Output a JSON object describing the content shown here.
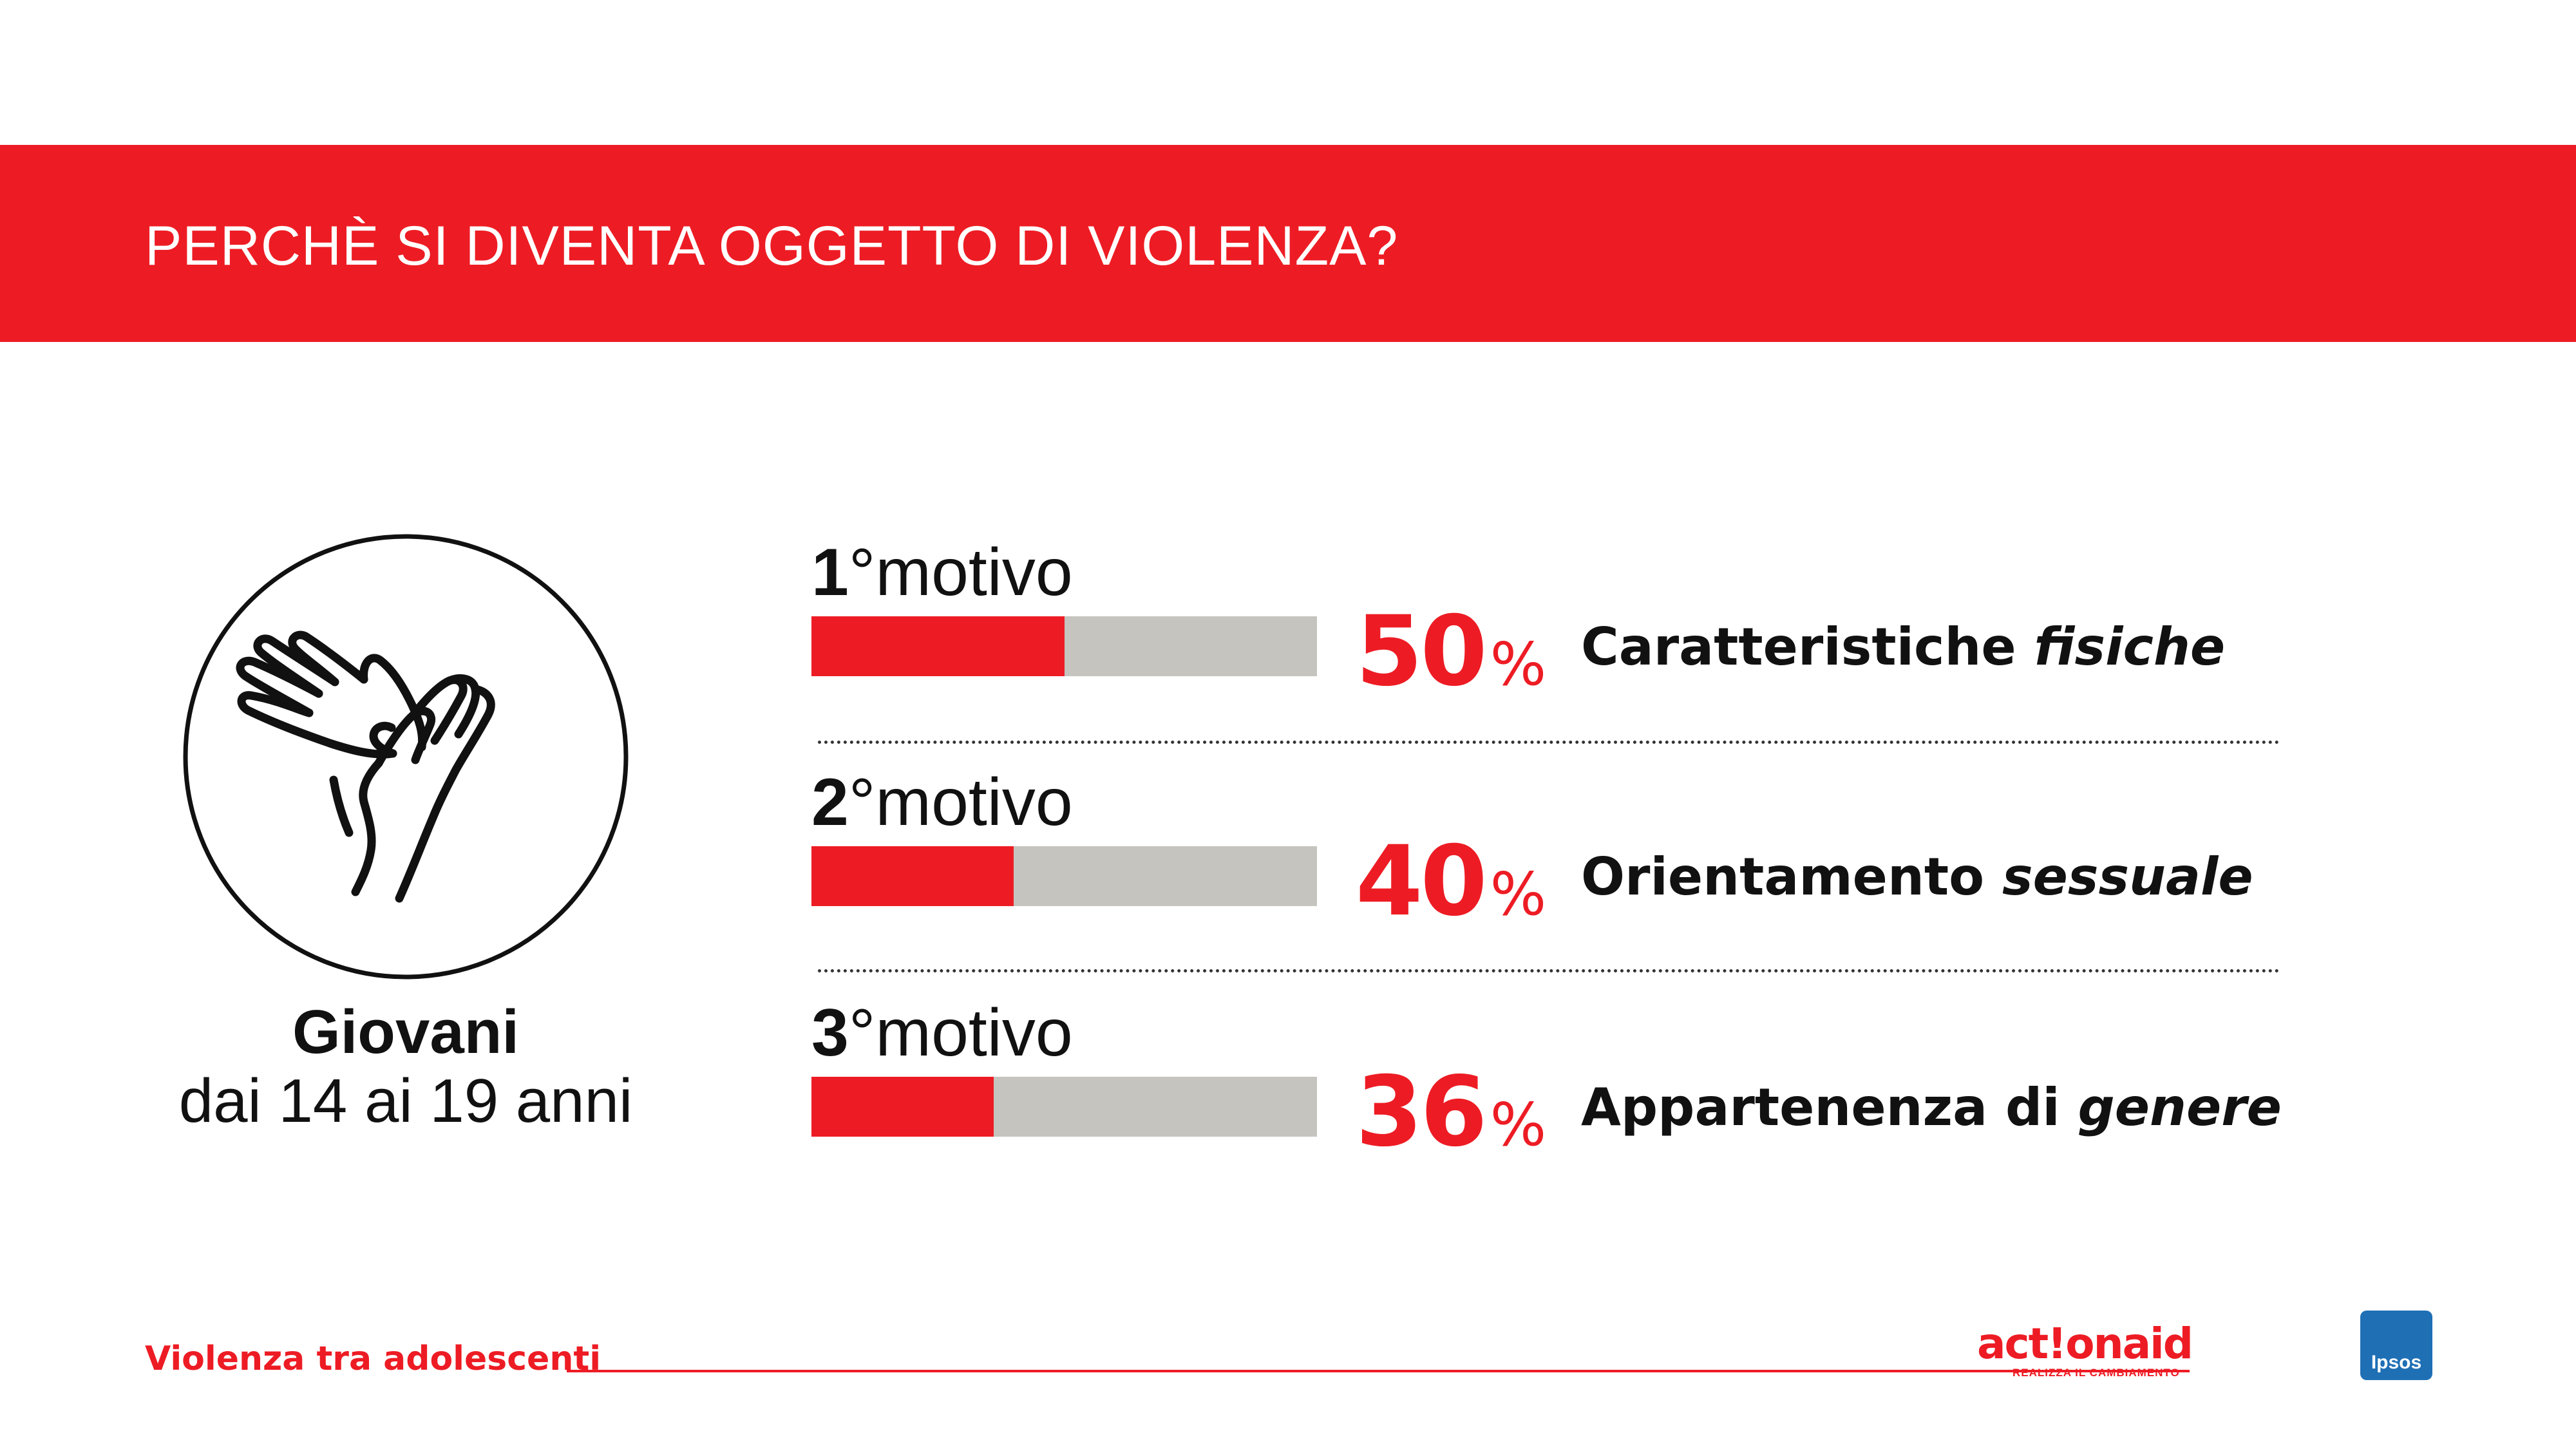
{
  "header": {
    "title": "PERCHÈ SI DIVENTA OGGETTO DI VIOLENZA?"
  },
  "group": {
    "title": "Giovani",
    "subtitle": "dai 14 ai 19 anni",
    "icon": "hands-icon"
  },
  "chart_data": {
    "type": "bar",
    "categories": [
      "Caratteristiche fisiche",
      "Orientamento sessuale",
      "Appartenenza di genere"
    ],
    "values": [
      50,
      40,
      36
    ],
    "ylim": [
      0,
      100
    ],
    "rows": [
      {
        "rank_num": "1",
        "rank_label": "°motivo",
        "value": 50,
        "value_text": "50",
        "unit": "%",
        "label_plain": "Caratteristiche ",
        "label_em": "fisiche"
      },
      {
        "rank_num": "2",
        "rank_label": "°motivo",
        "value": 40,
        "value_text": "40",
        "unit": "%",
        "label_plain": "Orientamento ",
        "label_em": "sessuale"
      },
      {
        "rank_num": "3",
        "rank_label": "°motivo",
        "value": 36,
        "value_text": "36",
        "unit": "%",
        "label_plain": "Appartenenza di ",
        "label_em": "genere"
      }
    ]
  },
  "footer": {
    "title": "Violenza tra adolescenti",
    "brand": "act!onaid",
    "brand_tagline": "REALIZZA IL CAMBIAMENTO",
    "partner": "Ipsos"
  },
  "colors": {
    "accent": "#ed1c24",
    "track": "#c5c4be"
  }
}
